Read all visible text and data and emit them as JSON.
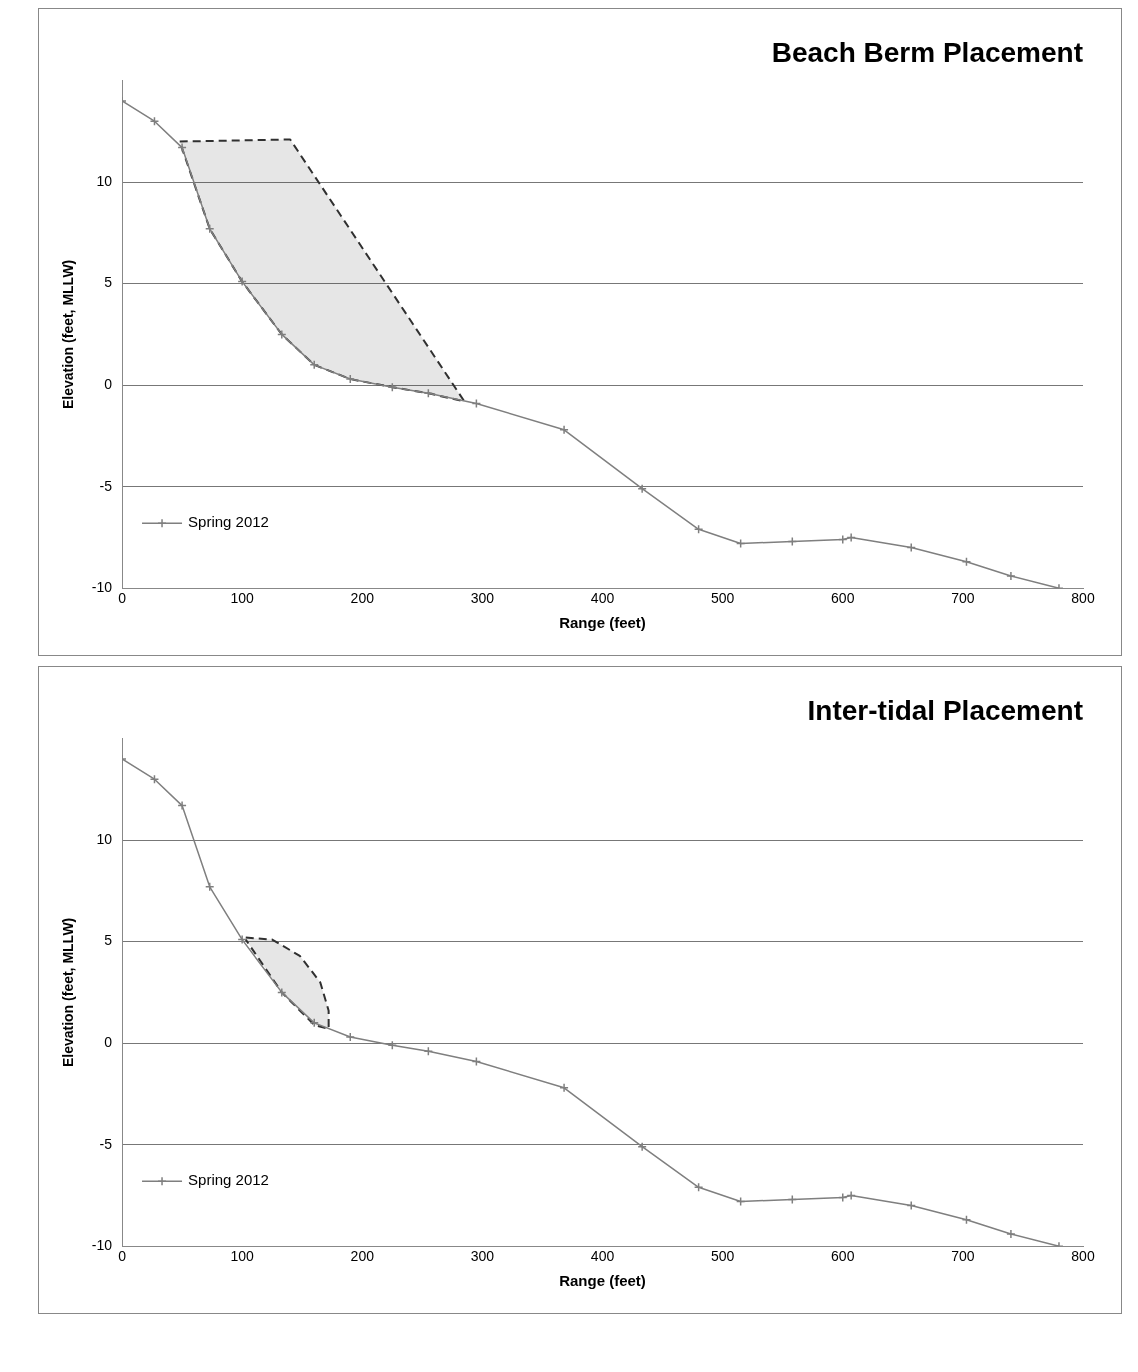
{
  "chart_data": [
    {
      "type": "line",
      "title": "Beach Berm Placement",
      "xlabel": "Range (feet)",
      "ylabel": "Elevation (feet, MLLW)",
      "xlim": [
        0,
        800
      ],
      "xticks": [
        0,
        100,
        200,
        300,
        400,
        500,
        600,
        700,
        800
      ],
      "ylim": [
        -10,
        15
      ],
      "yticks": [
        -10,
        -5,
        0,
        5,
        10
      ],
      "grid": "y",
      "legend": "bottom left",
      "marker": "cross",
      "series": [
        {
          "name": "Spring 2012",
          "color": "#7f7f7f",
          "x": [
            0,
            27,
            50,
            73,
            100,
            133,
            160,
            190,
            225,
            255,
            295,
            368,
            433,
            480,
            515,
            558,
            600,
            607,
            657,
            703,
            740,
            780
          ],
          "values": [
            14,
            13,
            11.7,
            7.7,
            5.1,
            2.5,
            1,
            0.3,
            -0.1,
            -0.4,
            -0.9,
            -2.2,
            -5.1,
            -7.1,
            -7.8,
            -7.7,
            -7.6,
            -7.5,
            -8,
            -8.7,
            -9.4,
            -10
          ]
        },
        {
          "type": "area",
          "color": "#303030",
          "line_style": "dashed",
          "marker": "none",
          "x": [
            48,
            140,
            285,
            255,
            225,
            190,
            160,
            133,
            100,
            73,
            48
          ],
          "values": [
            12,
            12.1,
            -0.8,
            -0.4,
            -0.1,
            0.3,
            1,
            2.5,
            5.1,
            7.7,
            12
          ]
        }
      ]
    },
    {
      "type": "line",
      "title": "Inter-tidal Placement",
      "xlabel": "Range (feet)",
      "ylabel": "Elevation (feet, MLLW)",
      "xlim": [
        0,
        800
      ],
      "xticks": [
        0,
        100,
        200,
        300,
        400,
        500,
        600,
        700,
        800
      ],
      "ylim": [
        -10,
        15
      ],
      "yticks": [
        -10,
        -5,
        0,
        5,
        10
      ],
      "grid": "y",
      "legend": "bottom left",
      "marker": "cross",
      "series": [
        {
          "name": "Spring 2012",
          "color": "#7f7f7f",
          "x": [
            0,
            27,
            50,
            73,
            100,
            133,
            160,
            190,
            225,
            255,
            295,
            368,
            433,
            480,
            515,
            558,
            600,
            607,
            657,
            703,
            740,
            780
          ],
          "values": [
            14,
            13,
            11.7,
            7.7,
            5.1,
            2.5,
            1,
            0.3,
            -0.1,
            -0.4,
            -0.9,
            -2.2,
            -5.1,
            -7.1,
            -7.8,
            -7.7,
            -7.6,
            -7.5,
            -8,
            -8.7,
            -9.4,
            -10
          ]
        },
        {
          "type": "area",
          "color": "#303030",
          "line_style": "dashed",
          "marker": "none",
          "x": [
            103,
            125,
            148,
            165,
            172,
            172,
            160,
            133,
            103
          ],
          "values": [
            5.2,
            5.1,
            4.3,
            3,
            1.6,
            0.7,
            0.9,
            2.5,
            5.1
          ]
        }
      ]
    }
  ]
}
